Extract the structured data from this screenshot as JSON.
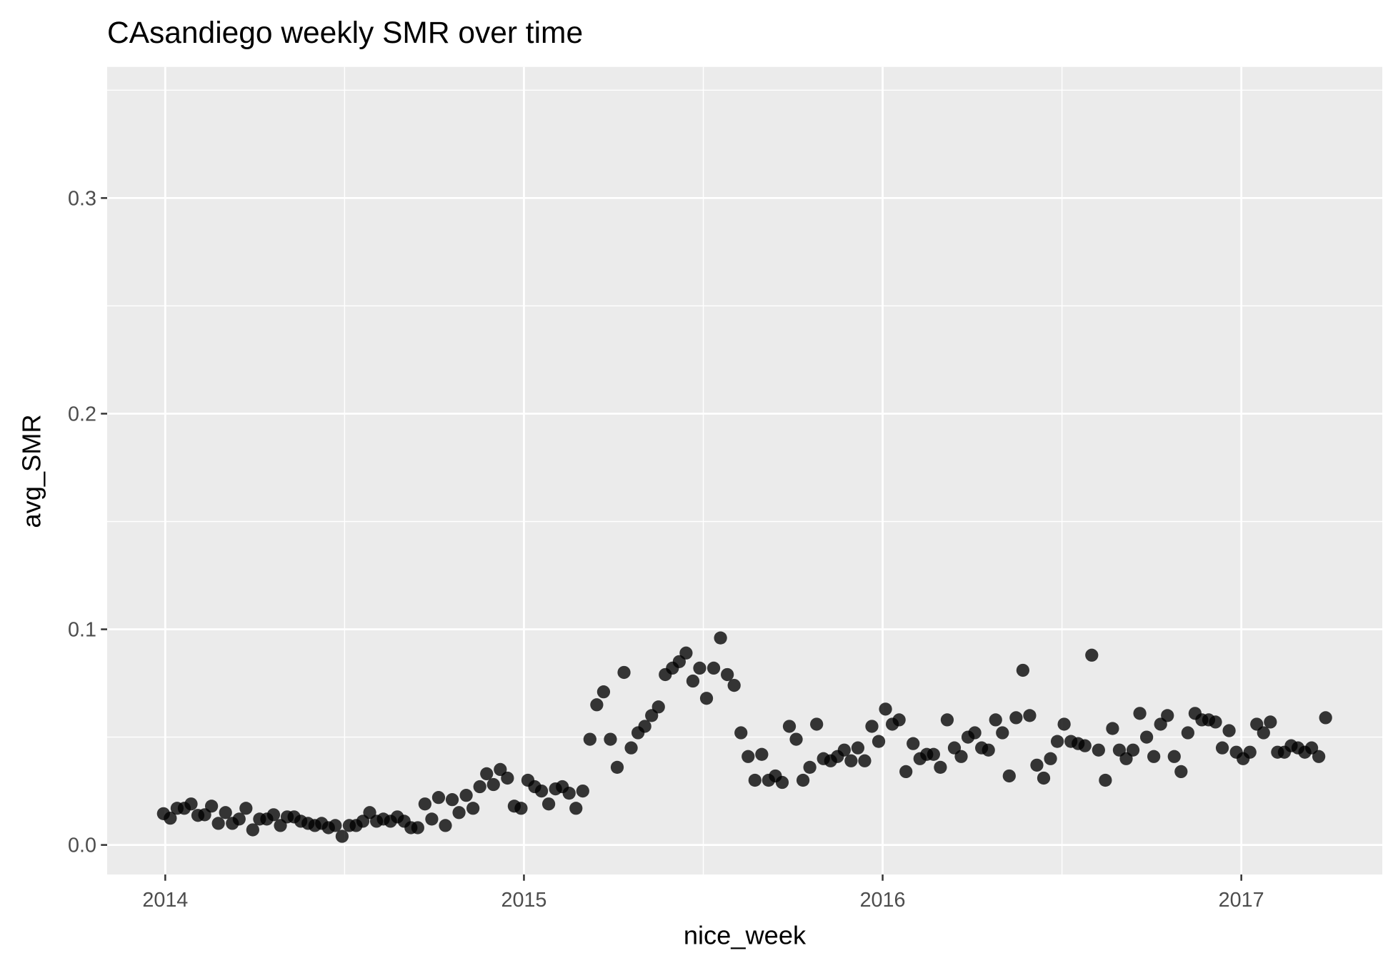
{
  "chart_data": {
    "type": "scatter",
    "title": "CAsandiego weekly SMR over time",
    "x_label": "nice_week",
    "y_label": "avg_SMR",
    "xlim": [
      2013.838,
      2017.393
    ],
    "ylim": [
      -0.0137,
      0.3608
    ],
    "xticks": [
      2014,
      2015,
      2016,
      2017
    ],
    "yticks": [
      {
        "value": 0,
        "label": "0.0"
      },
      0.1,
      0.2,
      0.3
    ],
    "grid": true,
    "series": [
      {
        "color": "#000000",
        "x": [
          2013.995,
          2014.014,
          2014.033,
          2014.053,
          2014.072,
          2014.091,
          2014.11,
          2014.129,
          2014.148,
          2014.168,
          2014.187,
          2014.206,
          2014.225,
          2014.244,
          2014.263,
          2014.283,
          2014.302,
          2014.321,
          2014.34,
          2014.359,
          2014.378,
          2014.398,
          2014.417,
          2014.436,
          2014.455,
          2014.474,
          2014.493,
          2014.513,
          2014.532,
          2014.551,
          2014.57,
          2014.589,
          2014.608,
          2014.628,
          2014.647,
          2014.666,
          2014.685,
          2014.704,
          2014.724,
          2014.743,
          2014.762,
          2014.781,
          2014.8,
          2014.819,
          2014.839,
          2014.858,
          2014.877,
          2014.896,
          2014.915,
          2014.934,
          2014.954,
          2014.973,
          2014.992,
          2015.011,
          2015.03,
          2015.049,
          2015.069,
          2015.088,
          2015.107,
          2015.126,
          2015.145,
          2015.164,
          2015.184,
          2015.203,
          2015.222,
          2015.241,
          2015.26,
          2015.279,
          2015.299,
          2015.318,
          2015.337,
          2015.356,
          2015.375,
          2015.394,
          2015.414,
          2015.433,
          2015.452,
          2015.471,
          2015.49,
          2015.509,
          2015.529,
          2015.548,
          2015.567,
          2015.586,
          2015.605,
          2015.625,
          2015.644,
          2015.663,
          2015.682,
          2015.701,
          2015.72,
          2015.74,
          2015.759,
          2015.778,
          2015.797,
          2015.816,
          2015.835,
          2015.855,
          2015.874,
          2015.893,
          2015.912,
          2015.931,
          2015.95,
          2015.97,
          2015.989,
          2016.008,
          2016.027,
          2016.046,
          2016.065,
          2016.085,
          2016.104,
          2016.123,
          2016.142,
          2016.161,
          2016.18,
          2016.2,
          2016.219,
          2016.238,
          2016.257,
          2016.276,
          2016.295,
          2016.315,
          2016.334,
          2016.353,
          2016.372,
          2016.391,
          2016.41,
          2016.43,
          2016.449,
          2016.468,
          2016.487,
          2016.506,
          2016.525,
          2016.545,
          2016.564,
          2016.583,
          2016.602,
          2016.621,
          2016.641,
          2016.66,
          2016.679,
          2016.698,
          2016.717,
          2016.736,
          2016.756,
          2016.775,
          2016.794,
          2016.813,
          2016.832,
          2016.851,
          2016.871,
          2016.89,
          2016.909,
          2016.928,
          2016.947,
          2016.966,
          2016.986,
          2017.005,
          2017.024,
          2017.043,
          2017.062,
          2017.081,
          2017.101,
          2017.12,
          2017.139,
          2017.158,
          2017.177,
          2017.196,
          2017.216,
          2017.235
        ],
        "values": [
          0.0145,
          0.0124,
          0.017,
          0.017,
          0.019,
          0.0137,
          0.014,
          0.018,
          0.01,
          0.015,
          0.01,
          0.012,
          0.017,
          0.007,
          0.012,
          0.012,
          0.014,
          0.009,
          0.013,
          0.013,
          0.011,
          0.01,
          0.009,
          0.01,
          0.008,
          0.009,
          0.004,
          0.009,
          0.009,
          0.011,
          0.015,
          0.011,
          0.012,
          0.011,
          0.013,
          0.011,
          0.008,
          0.008,
          0.019,
          0.012,
          0.022,
          0.009,
          0.021,
          0.015,
          0.023,
          0.017,
          0.027,
          0.033,
          0.028,
          0.035,
          0.031,
          0.018,
          0.017,
          0.03,
          0.027,
          0.025,
          0.019,
          0.026,
          0.027,
          0.024,
          0.017,
          0.025,
          0.049,
          0.065,
          0.071,
          0.049,
          0.036,
          0.08,
          0.045,
          0.052,
          0.055,
          0.06,
          0.064,
          0.079,
          0.082,
          0.085,
          0.089,
          0.076,
          0.082,
          0.068,
          0.082,
          0.096,
          0.079,
          0.074,
          0.052,
          0.041,
          0.03,
          0.042,
          0.03,
          0.032,
          0.029,
          0.055,
          0.049,
          0.03,
          0.036,
          0.056,
          0.04,
          0.039,
          0.041,
          0.044,
          0.039,
          0.045,
          0.039,
          0.055,
          0.048,
          0.063,
          0.056,
          0.058,
          0.034,
          0.047,
          0.04,
          0.042,
          0.042,
          0.036,
          0.058,
          0.045,
          0.041,
          0.05,
          0.052,
          0.045,
          0.044,
          0.058,
          0.052,
          0.032,
          0.059,
          0.081,
          0.06,
          0.037,
          0.031,
          0.04,
          0.048,
          0.056,
          0.048,
          0.047,
          0.046,
          0.088,
          0.044,
          0.03,
          0.054,
          0.044,
          0.04,
          0.044,
          0.061,
          0.05,
          0.041,
          0.056,
          0.06,
          0.041,
          0.034,
          0.052,
          0.061,
          0.058,
          0.058,
          0.057,
          0.045,
          0.053,
          0.043,
          0.04,
          0.043,
          0.056,
          0.052,
          0.057,
          0.043,
          0.043,
          0.046,
          0.045,
          0.043,
          0.045,
          0.041,
          0.059
        ]
      }
    ]
  }
}
